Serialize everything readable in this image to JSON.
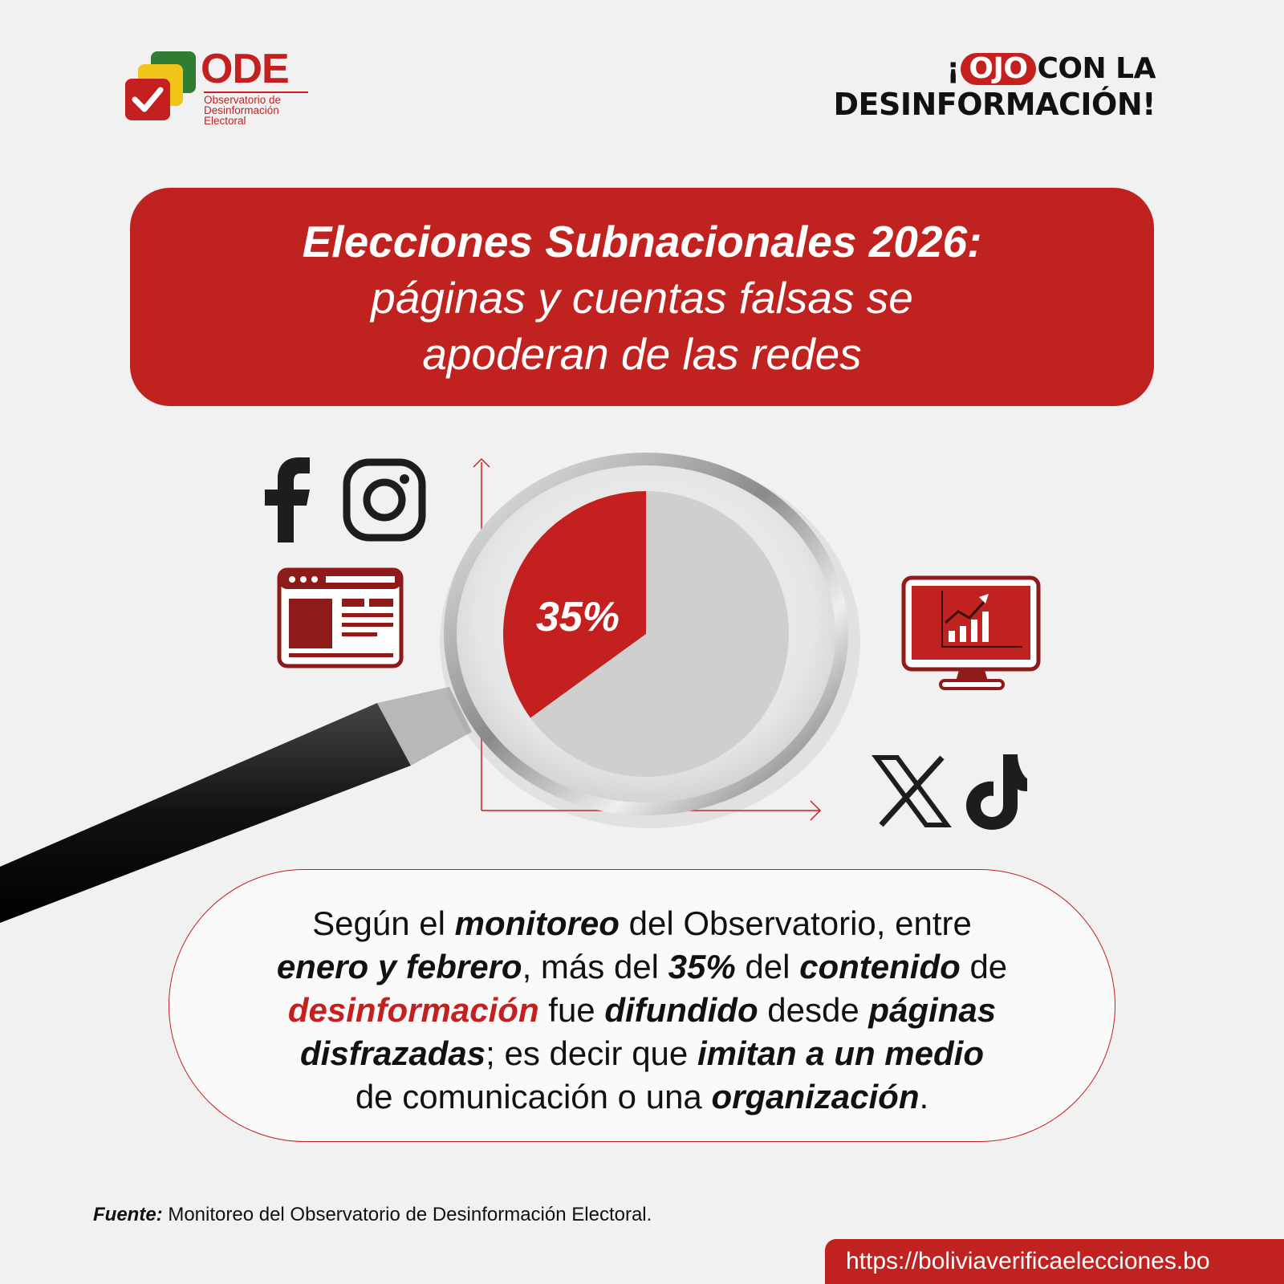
{
  "logo": {
    "acronym": "ODE",
    "subtitle_lines": [
      "Observatorio de",
      "Desinformación",
      "Electoral"
    ]
  },
  "header": {
    "excl": "¡",
    "ojo": "OJO",
    "con_la": "CON LA",
    "line2": "DESINFORMACIÓN!"
  },
  "banner": {
    "line1": "Elecciones Subnacionales 2026:",
    "line2": "páginas y cuentas falsas se",
    "line3": "apoderan de las redes"
  },
  "chart_data": {
    "type": "pie",
    "values": [
      35,
      65
    ],
    "labels": [
      "35%",
      ""
    ],
    "colors": [
      "#c4201f",
      "#cfcfcf"
    ]
  },
  "icons": [
    "facebook-icon",
    "instagram-icon",
    "webpage-icon",
    "monitor-chart-icon",
    "x-icon",
    "tiktok-icon",
    "magnifier-icon"
  ],
  "body": {
    "p1": "Según el ",
    "b1": "monitoreo",
    "p2": " del Observatorio, entre",
    "b2": "enero y febrero",
    "p3": ", más del ",
    "b3": "35%",
    "p4": " del ",
    "b4": "contenido",
    "p5": " de",
    "r1": "desinformación",
    "p6": " fue ",
    "b5": "difundido",
    "p7": " desde ",
    "b6": "páginas",
    "b7": "disfrazadas",
    "p8": "; es decir que ",
    "b8": "imitan a un medio",
    "p9": "de comunicación o una ",
    "b9": "organización",
    "p10": "."
  },
  "footer": {
    "source_label": "Fuente:",
    "source_text": " Monitoreo del Observatorio de Desinformación Electoral.",
    "url": "https://boliviaverificaelecciones.bo"
  },
  "colors": {
    "brand_red": "#c4201f",
    "dark": "#111111",
    "background": "#f1f1f1"
  }
}
